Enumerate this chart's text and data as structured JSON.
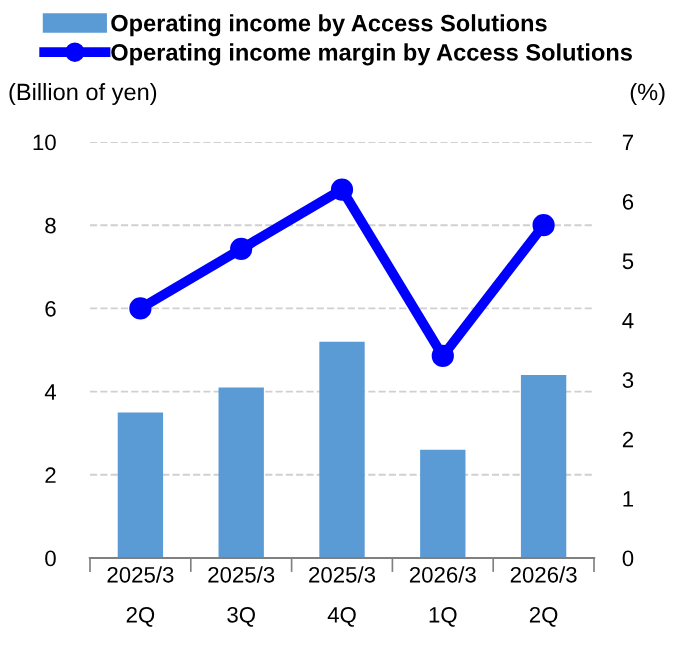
{
  "chart_data": {
    "type": "bar",
    "categories": [
      "2025/3\n2Q",
      "2025/3\n3Q",
      "2025/3\n4Q",
      "2026/3\n1Q",
      "2026/3\n2Q"
    ],
    "series": [
      {
        "name": "Operating income by Access Solutions",
        "color": "#5b9bd5",
        "values": [
          3.5,
          4.1,
          5.2,
          2.6,
          4.4
        ]
      },
      {
        "name": "Operating income margin by Access Solutions",
        "type": "line",
        "axis": "y2",
        "color": "#0000ff",
        "values": [
          4.2,
          5.2,
          6.2,
          3.4,
          5.6
        ]
      }
    ],
    "ylabel": "(Billion of yen)",
    "y2label": "(%)",
    "ylim": [
      0,
      10
    ],
    "yticks": [
      0,
      2,
      4,
      6,
      8,
      10
    ],
    "y2lim": [
      0,
      7
    ],
    "y2ticks": [
      0,
      1,
      2,
      3,
      4,
      5,
      6,
      7
    ],
    "grid": "y",
    "legend": "top left",
    "marker": "circle",
    "line_style": "solid"
  }
}
